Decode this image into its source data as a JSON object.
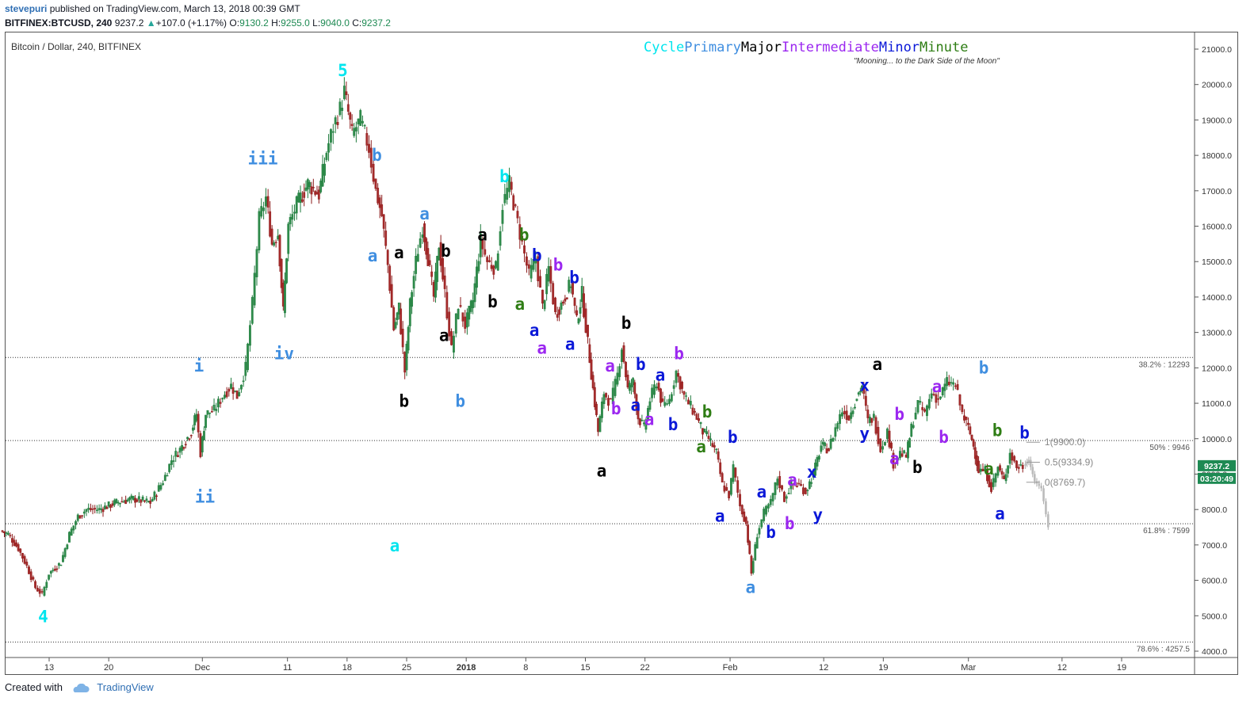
{
  "header": {
    "author": "stevepuri",
    "published_text": "published on TradingView.com, March 13, 2018 00:39 GMT",
    "symbol": "BITFINEX:BTCUSD, 240",
    "last": "9237.2",
    "change": "+107.0 (+1.17%)",
    "o_label": "O:",
    "o_value": "9130.2",
    "h_label": "H:",
    "h_value": "9255.0",
    "l_label": "L:",
    "l_value": "9040.0",
    "c_label": "C:",
    "c_value": "9237.2"
  },
  "legend": "Bitcoin / Dollar, 240, BITFINEX",
  "degrees": [
    {
      "name": "Cycle",
      "color": "#00e5ee"
    },
    {
      "name": "Primary",
      "color": "#3f8ee0"
    },
    {
      "name": "Major",
      "color": "#000000"
    },
    {
      "name": "Intermediate",
      "color": "#9b27f0"
    },
    {
      "name": "Minor",
      "color": "#0a18d8"
    },
    {
      "name": "Minute",
      "color": "#2e7d14"
    }
  ],
  "subtitle": "\"Mooning... to the Dark Side of the Moon\"",
  "footer": {
    "created": "Created with",
    "brand": "TradingView"
  },
  "chart_data": {
    "type": "candlestick",
    "symbol": "BITFINEX:BTCUSD",
    "interval": "240",
    "ylim": [
      3800,
      21300
    ],
    "y_ticks": [
      4000,
      5000,
      6000,
      7000,
      8000,
      9000,
      10000,
      11000,
      12000,
      13000,
      14000,
      15000,
      16000,
      17000,
      18000,
      19000,
      20000,
      21000
    ],
    "x_ticks": [
      {
        "day": 13,
        "label": "13"
      },
      {
        "day": 20,
        "label": "20"
      },
      {
        "day": 31,
        "label": "Dec"
      },
      {
        "day": 41,
        "label": "11"
      },
      {
        "day": 48,
        "label": "18"
      },
      {
        "day": 55,
        "label": "25"
      },
      {
        "day": 62,
        "label": "2018"
      },
      {
        "day": 69,
        "label": "8"
      },
      {
        "day": 76,
        "label": "15"
      },
      {
        "day": 83,
        "label": "22"
      },
      {
        "day": 93,
        "label": "Feb"
      },
      {
        "day": 104,
        "label": "12"
      },
      {
        "day": 111,
        "label": "19"
      },
      {
        "day": 121,
        "label": "Mar"
      },
      {
        "day": 132,
        "label": "12"
      },
      {
        "day": 139,
        "label": "19"
      }
    ],
    "x_unit_note": "day index counted from Nov 1, 2017",
    "close_path": [
      [
        7.4,
        7400
      ],
      [
        8.3,
        7300
      ],
      [
        9.5,
        6900
      ],
      [
        10.5,
        6400
      ],
      [
        11.5,
        5800
      ],
      [
        12.3,
        5600
      ],
      [
        13.1,
        6200
      ],
      [
        14.5,
        6500
      ],
      [
        15.5,
        7300
      ],
      [
        16.5,
        7800
      ],
      [
        17.5,
        8000
      ],
      [
        19.0,
        8000
      ],
      [
        21.0,
        8200
      ],
      [
        23.0,
        8300
      ],
      [
        25.0,
        8200
      ],
      [
        26.5,
        8800
      ],
      [
        27.5,
        9400
      ],
      [
        28.5,
        9700
      ],
      [
        29.8,
        10200
      ],
      [
        30.4,
        10700
      ],
      [
        30.9,
        9600
      ],
      [
        31.5,
        10700
      ],
      [
        32.5,
        10800
      ],
      [
        33.5,
        11200
      ],
      [
        34.5,
        11500
      ],
      [
        35.2,
        11200
      ],
      [
        36.2,
        12000
      ],
      [
        37.0,
        13800
      ],
      [
        37.8,
        16200
      ],
      [
        38.6,
        16800
      ],
      [
        39.3,
        15500
      ],
      [
        40.0,
        15800
      ],
      [
        40.6,
        13600
      ],
      [
        41.2,
        16000
      ],
      [
        42.2,
        16600
      ],
      [
        43.5,
        17200
      ],
      [
        44.8,
        16900
      ],
      [
        45.7,
        18100
      ],
      [
        46.5,
        18800
      ],
      [
        47.3,
        19300
      ],
      [
        47.8,
        19800
      ],
      [
        48.7,
        18600
      ],
      [
        49.7,
        19000
      ],
      [
        50.7,
        18200
      ],
      [
        51.5,
        17000
      ],
      [
        52.2,
        16300
      ],
      [
        52.9,
        14900
      ],
      [
        53.6,
        13100
      ],
      [
        54.2,
        13700
      ],
      [
        54.9,
        11900
      ],
      [
        55.5,
        13800
      ],
      [
        56.2,
        15000
      ],
      [
        57.0,
        16000
      ],
      [
        57.6,
        15100
      ],
      [
        58.3,
        14000
      ],
      [
        58.9,
        15500
      ],
      [
        59.6,
        14100
      ],
      [
        60.4,
        12500
      ],
      [
        61.2,
        13800
      ],
      [
        62.0,
        13200
      ],
      [
        62.9,
        13900
      ],
      [
        63.8,
        15600
      ],
      [
        64.6,
        15000
      ],
      [
        65.6,
        14800
      ],
      [
        66.4,
        16600
      ],
      [
        67.2,
        17200
      ],
      [
        67.9,
        16400
      ],
      [
        68.7,
        15500
      ],
      [
        69.5,
        14600
      ],
      [
        70.3,
        15100
      ],
      [
        71.1,
        13700
      ],
      [
        71.8,
        14800
      ],
      [
        72.6,
        13500
      ],
      [
        73.5,
        13900
      ],
      [
        74.4,
        14400
      ],
      [
        75.1,
        13300
      ],
      [
        75.7,
        14100
      ],
      [
        76.4,
        12700
      ],
      [
        77.0,
        11400
      ],
      [
        77.6,
        10200
      ],
      [
        78.3,
        11300
      ],
      [
        79.1,
        11000
      ],
      [
        79.9,
        11800
      ],
      [
        80.4,
        12600
      ],
      [
        81.1,
        11400
      ],
      [
        81.7,
        11600
      ],
      [
        82.3,
        10600
      ],
      [
        83.0,
        10300
      ],
      [
        83.7,
        11100
      ],
      [
        84.5,
        11600
      ],
      [
        85.2,
        10900
      ],
      [
        86.0,
        11100
      ],
      [
        86.8,
        11900
      ],
      [
        87.7,
        11200
      ],
      [
        88.5,
        10900
      ],
      [
        89.2,
        10600
      ],
      [
        89.9,
        10200
      ],
      [
        90.6,
        10000
      ],
      [
        91.5,
        9600
      ],
      [
        92.2,
        8700
      ],
      [
        93.0,
        8400
      ],
      [
        93.5,
        9200
      ],
      [
        94.3,
        8100
      ],
      [
        95.0,
        7600
      ],
      [
        95.6,
        6200
      ],
      [
        96.3,
        7300
      ],
      [
        97.1,
        7900
      ],
      [
        97.9,
        8200
      ],
      [
        98.7,
        8900
      ],
      [
        99.5,
        8300
      ],
      [
        100.3,
        8700
      ],
      [
        101.2,
        8700
      ],
      [
        102.0,
        8500
      ],
      [
        102.9,
        9000
      ],
      [
        103.8,
        9800
      ],
      [
        104.7,
        9700
      ],
      [
        105.5,
        10300
      ],
      [
        106.3,
        10800
      ],
      [
        107.1,
        10600
      ],
      [
        108.0,
        11200
      ],
      [
        108.6,
        11500
      ],
      [
        109.3,
        10500
      ],
      [
        110.0,
        10600
      ],
      [
        110.8,
        9700
      ],
      [
        111.6,
        10200
      ],
      [
        112.3,
        9300
      ],
      [
        113.1,
        9600
      ],
      [
        113.8,
        9500
      ],
      [
        114.4,
        10300
      ],
      [
        115.2,
        11000
      ],
      [
        116.0,
        10700
      ],
      [
        116.8,
        11300
      ],
      [
        117.6,
        11100
      ],
      [
        118.6,
        11600
      ],
      [
        119.6,
        11500
      ],
      [
        120.4,
        10700
      ],
      [
        121.1,
        10300
      ],
      [
        121.7,
        9800
      ],
      [
        122.3,
        9100
      ],
      [
        123.1,
        9100
      ],
      [
        123.8,
        8600
      ],
      [
        124.6,
        9200
      ],
      [
        125.3,
        8800
      ],
      [
        126.0,
        9600
      ],
      [
        126.8,
        9200
      ],
      [
        127.5,
        9237
      ]
    ],
    "projection": [
      [
        127.6,
        9237
      ],
      [
        128.2,
        9400
      ],
      [
        128.9,
        8800
      ],
      [
        129.7,
        8600
      ],
      [
        130.5,
        7500
      ]
    ],
    "fib_retracements": [
      {
        "level": "38.2%",
        "value": 12293,
        "label": "38.2% : 12293"
      },
      {
        "level": "50%",
        "value": 9946,
        "label": "50% : 9946"
      },
      {
        "level": "61.8%",
        "value": 7599,
        "label": "61.8% : 7599"
      },
      {
        "level": "78.6%",
        "value": 4257.5,
        "label": "78.6% : 4257.5"
      }
    ],
    "fib_projection": [
      {
        "label": "1(9900.0)",
        "value": 9900
      },
      {
        "label": "0.5(9334.9)",
        "value": 9334.9
      },
      {
        "label": "0(8769.7)",
        "value": 8769.7
      }
    ],
    "price_tags": [
      {
        "text": "9237.2",
        "value": 9237.2,
        "color": "#1e8a53"
      },
      {
        "text": "03:20:49",
        "value": 8880,
        "color": "#1e8a53"
      }
    ],
    "wave_labels": [
      {
        "t": "4",
        "d": 12.3,
        "p": 4970,
        "deg": 0
      },
      {
        "t": "i",
        "d": 30.6,
        "p": 12050,
        "deg": 1
      },
      {
        "t": "ii",
        "d": 31.3,
        "p": 8350,
        "deg": 1
      },
      {
        "t": "iii",
        "d": 38.1,
        "p": 17900,
        "deg": 1
      },
      {
        "t": "iv",
        "d": 40.6,
        "p": 12400,
        "deg": 1
      },
      {
        "t": "5",
        "d": 47.5,
        "p": 20400,
        "deg": 0
      },
      {
        "t": "b",
        "d": 51.5,
        "p": 18000,
        "deg": 1
      },
      {
        "t": "a",
        "d": 51.0,
        "p": 15160,
        "deg": 1
      },
      {
        "t": "a",
        "d": 53.6,
        "p": 6980,
        "deg": 0
      },
      {
        "t": "a",
        "d": 54.1,
        "p": 15250,
        "deg": 2
      },
      {
        "t": "b",
        "d": 54.7,
        "p": 11060,
        "deg": 2
      },
      {
        "t": "a",
        "d": 57.1,
        "p": 16350,
        "deg": 1
      },
      {
        "t": "b",
        "d": 59.6,
        "p": 15300,
        "deg": 2
      },
      {
        "t": "a",
        "d": 59.4,
        "p": 12910,
        "deg": 2
      },
      {
        "t": "b",
        "d": 61.3,
        "p": 11060,
        "deg": 1
      },
      {
        "t": "a",
        "d": 63.9,
        "p": 15750,
        "deg": 2
      },
      {
        "t": "b",
        "d": 65.1,
        "p": 13860,
        "deg": 2
      },
      {
        "t": "b",
        "d": 66.5,
        "p": 17400,
        "deg": 0
      },
      {
        "t": "b",
        "d": 68.8,
        "p": 15750,
        "deg": 5
      },
      {
        "t": "a",
        "d": 68.3,
        "p": 13800,
        "deg": 5
      },
      {
        "t": "b",
        "d": 70.3,
        "p": 15170,
        "deg": 4
      },
      {
        "t": "a",
        "d": 70.0,
        "p": 13060,
        "deg": 4
      },
      {
        "t": "a",
        "d": 70.9,
        "p": 12560,
        "deg": 3
      },
      {
        "t": "b",
        "d": 72.8,
        "p": 14900,
        "deg": 3
      },
      {
        "t": "b",
        "d": 74.7,
        "p": 14550,
        "deg": 4
      },
      {
        "t": "a",
        "d": 74.2,
        "p": 12670,
        "deg": 4
      },
      {
        "t": "a",
        "d": 77.9,
        "p": 9090,
        "deg": 2
      },
      {
        "t": "a",
        "d": 78.9,
        "p": 12050,
        "deg": 3
      },
      {
        "t": "b",
        "d": 79.6,
        "p": 10840,
        "deg": 3
      },
      {
        "t": "b",
        "d": 80.8,
        "p": 13260,
        "deg": 2
      },
      {
        "t": "b",
        "d": 82.5,
        "p": 12100,
        "deg": 4
      },
      {
        "t": "a",
        "d": 81.9,
        "p": 10940,
        "deg": 4
      },
      {
        "t": "a",
        "d": 84.8,
        "p": 11800,
        "deg": 4
      },
      {
        "t": "a",
        "d": 83.5,
        "p": 10540,
        "deg": 3
      },
      {
        "t": "b",
        "d": 87.0,
        "p": 12400,
        "deg": 3
      },
      {
        "t": "b",
        "d": 86.3,
        "p": 10400,
        "deg": 4
      },
      {
        "t": "b",
        "d": 90.3,
        "p": 10760,
        "deg": 5
      },
      {
        "t": "a",
        "d": 89.6,
        "p": 9770,
        "deg": 5
      },
      {
        "t": "b",
        "d": 93.3,
        "p": 10040,
        "deg": 4
      },
      {
        "t": "a",
        "d": 91.8,
        "p": 7810,
        "deg": 4
      },
      {
        "t": "a",
        "d": 95.4,
        "p": 5800,
        "deg": 1
      },
      {
        "t": "a",
        "d": 96.7,
        "p": 8500,
        "deg": 4
      },
      {
        "t": "b",
        "d": 97.8,
        "p": 7360,
        "deg": 4
      },
      {
        "t": "a",
        "d": 100.3,
        "p": 8830,
        "deg": 3
      },
      {
        "t": "b",
        "d": 100.0,
        "p": 7600,
        "deg": 3
      },
      {
        "t": "x",
        "d": 102.6,
        "p": 9050,
        "deg": 4
      },
      {
        "t": "y",
        "d": 103.3,
        "p": 7850,
        "deg": 4
      },
      {
        "t": "x",
        "d": 108.8,
        "p": 11500,
        "deg": 4
      },
      {
        "t": "y",
        "d": 108.8,
        "p": 10140,
        "deg": 4
      },
      {
        "t": "a",
        "d": 110.3,
        "p": 12100,
        "deg": 2
      },
      {
        "t": "b",
        "d": 112.9,
        "p": 10690,
        "deg": 3
      },
      {
        "t": "a",
        "d": 112.3,
        "p": 9430,
        "deg": 3
      },
      {
        "t": "b",
        "d": 115.0,
        "p": 9190,
        "deg": 2
      },
      {
        "t": "a",
        "d": 117.3,
        "p": 11470,
        "deg": 3
      },
      {
        "t": "b",
        "d": 118.1,
        "p": 10040,
        "deg": 3
      },
      {
        "t": "b",
        "d": 122.8,
        "p": 12000,
        "deg": 1
      },
      {
        "t": "b",
        "d": 124.4,
        "p": 10230,
        "deg": 5
      },
      {
        "t": "a",
        "d": 123.4,
        "p": 9150,
        "deg": 5
      },
      {
        "t": "a",
        "d": 124.7,
        "p": 7880,
        "deg": 4
      },
      {
        "t": "b",
        "d": 127.6,
        "p": 10160,
        "deg": 4
      }
    ]
  }
}
